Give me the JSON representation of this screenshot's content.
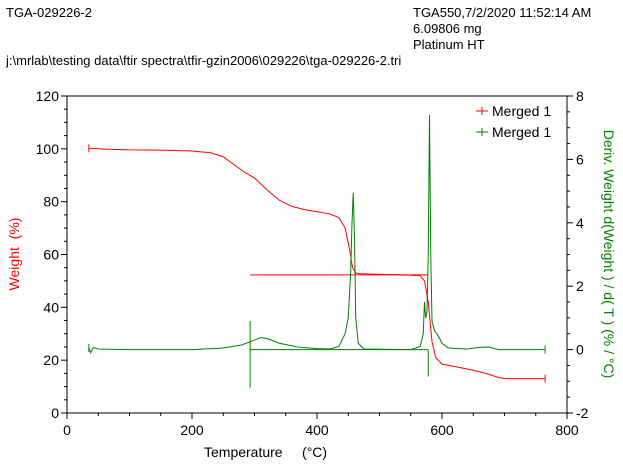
{
  "header": {
    "sample_name": "TGA-029226-2",
    "instrument_date": "TGA550,7/2/2020 11:52:14 AM",
    "mass": "6.09806 mg",
    "pan": "Platinum HT",
    "file_path": "j:\\mrlab\\testing data\\ftir spectra\\tfir-gzin2006\\029226\\tga-029226-2.tri"
  },
  "chart_data": {
    "type": "line",
    "xlabel": "Temperature     (°C)",
    "ylabel": "Weight  (%)",
    "y2label": "Deriv. Weight d(Weight ) / d( T ) (% / °C)",
    "xlim": [
      0,
      800
    ],
    "ylim": [
      0,
      120
    ],
    "y2lim": [
      -2,
      8
    ],
    "xticks": [
      "0",
      "200",
      "400",
      "600",
      "800"
    ],
    "yticks": [
      "0",
      "20",
      "40",
      "60",
      "80",
      "100",
      "120"
    ],
    "y2ticks": [
      "-2",
      "0",
      "2",
      "4",
      "6",
      "8"
    ],
    "grid": false,
    "legend_position": "top-right",
    "colors": {
      "weight": "#ff0000",
      "deriv": "#008000"
    },
    "series": [
      {
        "name": "Merged 1",
        "axis": "left",
        "color": "#ff0000",
        "points": [
          [
            35,
            100.2
          ],
          [
            60,
            99.9
          ],
          [
            100,
            99.6
          ],
          [
            150,
            99.5
          ],
          [
            200,
            99.2
          ],
          [
            230,
            98.5
          ],
          [
            250,
            97
          ],
          [
            270,
            93.5
          ],
          [
            285,
            91
          ],
          [
            300,
            89
          ],
          [
            320,
            84.5
          ],
          [
            340,
            80.5
          ],
          [
            360,
            78.2
          ],
          [
            380,
            77
          ],
          [
            400,
            76.2
          ],
          [
            420,
            75.4
          ],
          [
            435,
            74
          ],
          [
            445,
            70
          ],
          [
            452,
            62
          ],
          [
            457,
            55
          ],
          [
            462,
            53
          ],
          [
            470,
            52.7
          ],
          [
            500,
            52.5
          ],
          [
            540,
            52.3
          ],
          [
            565,
            52
          ],
          [
            572,
            50
          ],
          [
            578,
            42
          ],
          [
            584,
            27
          ],
          [
            590,
            21
          ],
          [
            600,
            18.5
          ],
          [
            620,
            17.6
          ],
          [
            650,
            16.2
          ],
          [
            670,
            15
          ],
          [
            690,
            13.5
          ],
          [
            700,
            13
          ],
          [
            765,
            13
          ]
        ],
        "extra_segment": [
          [
            293,
            52.3
          ],
          [
            578,
            52.3
          ]
        ]
      },
      {
        "name": "Merged 1",
        "axis": "right",
        "color": "#008000",
        "points": [
          [
            35,
            0.05
          ],
          [
            38,
            -0.1
          ],
          [
            42,
            0.06
          ],
          [
            50,
            0.02
          ],
          [
            100,
            0.0
          ],
          [
            200,
            0.0
          ],
          [
            250,
            0.05
          ],
          [
            280,
            0.15
          ],
          [
            300,
            0.3
          ],
          [
            310,
            0.38
          ],
          [
            320,
            0.35
          ],
          [
            340,
            0.2
          ],
          [
            370,
            0.08
          ],
          [
            400,
            0.03
          ],
          [
            420,
            0.02
          ],
          [
            435,
            0.1
          ],
          [
            445,
            0.5
          ],
          [
            450,
            1.0
          ],
          [
            454,
            2.5
          ],
          [
            456,
            4.0
          ],
          [
            458,
            4.95
          ],
          [
            460,
            3.5
          ],
          [
            462,
            1.0
          ],
          [
            466,
            0.2
          ],
          [
            475,
            0.02
          ],
          [
            550,
            0.0
          ],
          [
            565,
            0.1
          ],
          [
            570,
            0.5
          ],
          [
            572,
            1.5
          ],
          [
            574,
            1.0
          ],
          [
            576,
            1.2
          ],
          [
            578,
            3
          ],
          [
            580,
            7.4
          ],
          [
            582,
            3
          ],
          [
            584,
            0.9
          ],
          [
            588,
            0.6
          ],
          [
            595,
            0.4
          ],
          [
            600,
            0.2
          ],
          [
            610,
            0.05
          ],
          [
            640,
            0.02
          ],
          [
            660,
            0.07
          ],
          [
            675,
            0.08
          ],
          [
            690,
            0.0
          ],
          [
            765,
            0.0
          ]
        ],
        "extra_segment": [
          [
            293,
            0
          ],
          [
            578,
            0
          ]
        ],
        "spikes": [
          [
            293,
            -1.2,
            0.9
          ],
          [
            578,
            -0.85,
            0
          ]
        ]
      }
    ]
  }
}
